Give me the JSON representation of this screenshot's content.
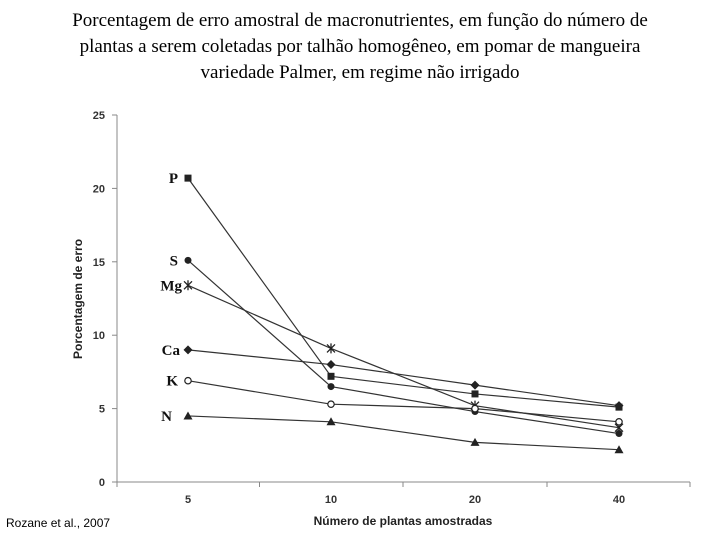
{
  "title": {
    "line1": "Porcentagem de erro amostral de macronutrientes, em função do número de",
    "line2": "plantas a serem coletadas por talhão homogêneo, em pomar de mangueira",
    "line3": "variedade Palmer, em regime não irrigado"
  },
  "source": "Rozane et al., 2007",
  "chart_data": {
    "type": "line",
    "title": "Porcentagem de erro amostral de macronutrientes, em função do número de plantas a serem coletadas por talhão homogêneo, em pomar de mangueira variedade Palmer, em regime não irrigado",
    "xlabel": "Número de plantas amostradas",
    "ylabel": "Porcentagem de erro",
    "categories": [
      "5",
      "10",
      "20",
      "40"
    ],
    "ylim": [
      0,
      25
    ],
    "yticks": [
      0,
      5,
      10,
      15,
      20,
      25
    ],
    "grid": false,
    "series": [
      {
        "name": "P",
        "marker": "square",
        "values": [
          20.7,
          7.2,
          6.0,
          5.1
        ]
      },
      {
        "name": "S",
        "marker": "circle",
        "values": [
          15.1,
          6.5,
          4.8,
          3.3
        ]
      },
      {
        "name": "Mg",
        "marker": "star",
        "values": [
          13.4,
          9.1,
          5.2,
          3.7
        ]
      },
      {
        "name": "Ca",
        "marker": "diamond",
        "values": [
          9.0,
          8.0,
          6.6,
          5.2
        ]
      },
      {
        "name": "K",
        "marker": "open-circle",
        "values": [
          6.9,
          5.3,
          5.0,
          4.1
        ]
      },
      {
        "name": "N",
        "marker": "triangle",
        "values": [
          4.5,
          4.1,
          2.7,
          2.2
        ]
      }
    ]
  }
}
